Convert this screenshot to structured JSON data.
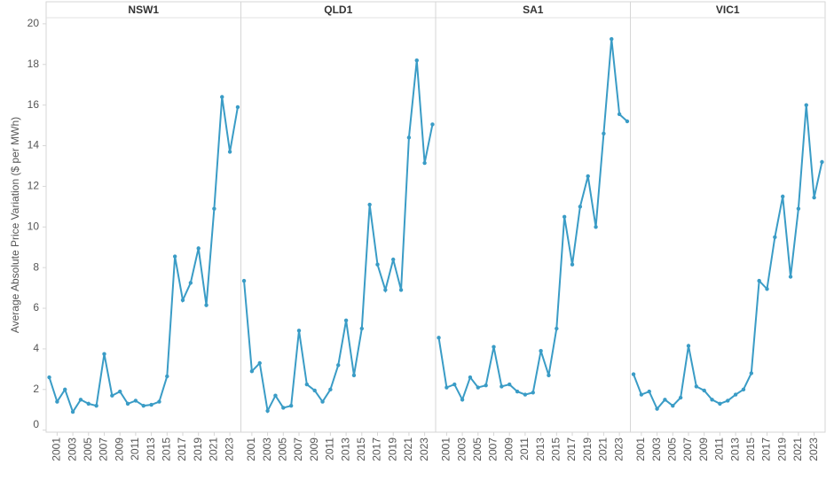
{
  "chart_data": {
    "type": "line",
    "y_label": "Average Absolute Price Variation ($ per MWh)",
    "x": [
      2000,
      2001,
      2002,
      2003,
      2004,
      2005,
      2006,
      2007,
      2008,
      2009,
      2010,
      2011,
      2012,
      2013,
      2014,
      2015,
      2016,
      2017,
      2018,
      2019,
      2020,
      2021,
      2022,
      2023,
      2024
    ],
    "xlim": [
      1999.6,
      2024.4
    ],
    "xticks": [
      2001,
      2003,
      2005,
      2007,
      2009,
      2011,
      2013,
      2015,
      2017,
      2019,
      2021,
      2023
    ],
    "ylim": [
      -0.1,
      20.3
    ],
    "yticks": [
      0,
      2,
      4,
      6,
      8,
      10,
      12,
      14,
      16,
      18,
      20
    ],
    "series": [
      {
        "name": "NSW1",
        "color": "#3a9cc6",
        "values": [
          2.6,
          1.4,
          2.0,
          0.9,
          1.5,
          1.3,
          1.2,
          3.75,
          1.7,
          1.9,
          1.3,
          1.45,
          1.2,
          1.25,
          1.4,
          2.65,
          8.55,
          6.4,
          7.25,
          8.95,
          6.15,
          10.9,
          16.4,
          13.7,
          15.9
        ]
      },
      {
        "name": "QLD1",
        "color": "#3a9cc6",
        "values": [
          7.35,
          2.9,
          3.3,
          0.95,
          1.7,
          1.1,
          1.2,
          4.9,
          2.25,
          1.95,
          1.4,
          2.0,
          3.2,
          5.4,
          2.7,
          5.0,
          11.1,
          8.15,
          6.9,
          8.4,
          6.9,
          14.4,
          18.2,
          13.15,
          15.05
        ]
      },
      {
        "name": "SA1",
        "color": "#3a9cc6",
        "values": [
          4.55,
          2.1,
          2.25,
          1.5,
          2.6,
          2.1,
          2.2,
          4.1,
          2.15,
          2.25,
          1.9,
          1.75,
          1.85,
          3.9,
          2.7,
          5.0,
          10.5,
          8.15,
          11.0,
          12.5,
          10.0,
          14.6,
          19.25,
          15.55,
          15.2
        ]
      },
      {
        "name": "VIC1",
        "color": "#3a9cc6",
        "values": [
          2.75,
          1.75,
          1.9,
          1.05,
          1.5,
          1.2,
          1.6,
          4.15,
          2.15,
          1.95,
          1.5,
          1.3,
          1.45,
          1.75,
          2.0,
          2.8,
          7.35,
          6.95,
          9.5,
          11.5,
          7.55,
          10.9,
          16.0,
          11.45,
          13.2
        ]
      }
    ]
  }
}
